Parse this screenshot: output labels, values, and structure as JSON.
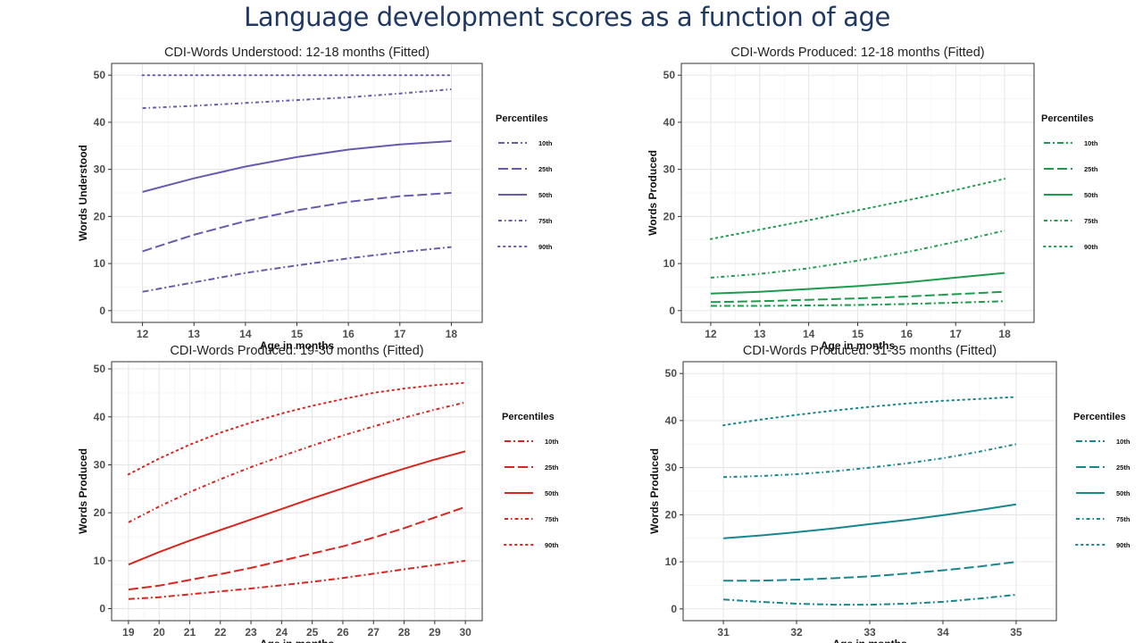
{
  "slide": {
    "title": "Language development scores as a function of age"
  },
  "legend_title": "Percentiles",
  "chart_data": [
    {
      "type": "line",
      "title": "CDI-Words Understood: 12-18 months (Fitted)",
      "xlabel": "Age in months",
      "ylabel": "Words Understood",
      "color": "#6a5aad",
      "xlim": [
        11.4,
        18.6
      ],
      "ylim": [
        -2.5,
        52.5
      ],
      "xticks": [
        12,
        13,
        14,
        15,
        16,
        17,
        18
      ],
      "yticks": [
        0,
        10,
        20,
        30,
        40,
        50
      ],
      "grid": true,
      "legend_position": "right",
      "x": [
        12,
        13,
        14,
        15,
        16,
        17,
        18
      ],
      "series": [
        {
          "name": "10th",
          "dash": "dashdot",
          "values": [
            4,
            6,
            8,
            9.6,
            11.1,
            12.4,
            13.5
          ]
        },
        {
          "name": "25th",
          "dash": "longdash",
          "values": [
            12.6,
            16.1,
            19.0,
            21.3,
            23.1,
            24.3,
            25.0
          ]
        },
        {
          "name": "50th",
          "dash": "solid",
          "values": [
            25.2,
            28.1,
            30.6,
            32.6,
            34.2,
            35.3,
            36.0
          ]
        },
        {
          "name": "75th",
          "dash": "dashdot2",
          "values": [
            43.0,
            43.5,
            44.1,
            44.7,
            45.3,
            46.1,
            47.0
          ]
        },
        {
          "name": "90th",
          "dash": "dotted",
          "values": [
            50,
            50,
            50,
            50,
            50,
            50,
            50
          ]
        }
      ]
    },
    {
      "type": "line",
      "title": "CDI-Words Produced: 12-18 months (Fitted)",
      "xlabel": "Age in months",
      "ylabel": "Words Produced",
      "color": "#1e9c4d",
      "xlim": [
        11.4,
        18.6
      ],
      "ylim": [
        -2.5,
        52.5
      ],
      "xticks": [
        12,
        13,
        14,
        15,
        16,
        17,
        18
      ],
      "yticks": [
        0,
        10,
        20,
        30,
        40,
        50
      ],
      "grid": true,
      "legend_position": "right",
      "x": [
        12,
        13,
        14,
        15,
        16,
        17,
        18
      ],
      "series": [
        {
          "name": "10th",
          "dash": "dashdot",
          "values": [
            1.0,
            1.0,
            1.1,
            1.2,
            1.4,
            1.7,
            2.0
          ]
        },
        {
          "name": "25th",
          "dash": "longdash",
          "values": [
            1.8,
            2.0,
            2.3,
            2.6,
            3.0,
            3.5,
            4.0
          ]
        },
        {
          "name": "50th",
          "dash": "solid",
          "values": [
            3.6,
            4.0,
            4.6,
            5.2,
            6.0,
            7.0,
            8.0
          ]
        },
        {
          "name": "75th",
          "dash": "dashdot2",
          "values": [
            7.0,
            7.8,
            9.0,
            10.6,
            12.4,
            14.6,
            17.0
          ]
        },
        {
          "name": "90th",
          "dash": "dotted",
          "values": [
            15.2,
            17.2,
            19.2,
            21.3,
            23.4,
            25.6,
            28.0
          ]
        }
      ]
    },
    {
      "type": "line",
      "title": "CDI-Words Produced: 19-30 months (Fitted)",
      "xlabel": "Age in months",
      "ylabel": "Words Produced",
      "color": "#d8261f",
      "xlim": [
        18.45,
        30.55
      ],
      "ylim": [
        -2.5,
        51.5
      ],
      "xticks": [
        19,
        20,
        21,
        22,
        23,
        24,
        25,
        26,
        27,
        28,
        29,
        30
      ],
      "yticks": [
        0,
        10,
        20,
        30,
        40,
        50
      ],
      "grid": true,
      "legend_position": "right",
      "x": [
        19,
        20,
        21,
        22,
        23,
        24,
        25,
        26,
        27,
        28,
        29,
        30
      ],
      "series": [
        {
          "name": "10th",
          "dash": "dashdot",
          "values": [
            2.0,
            2.4,
            3.0,
            3.6,
            4.2,
            4.9,
            5.6,
            6.4,
            7.3,
            8.2,
            9.1,
            10.0
          ]
        },
        {
          "name": "25th",
          "dash": "longdash",
          "values": [
            4.0,
            4.8,
            6.0,
            7.2,
            8.5,
            10.0,
            11.5,
            13.0,
            14.8,
            16.8,
            19.0,
            21.2
          ]
        },
        {
          "name": "50th",
          "dash": "solid",
          "values": [
            9.2,
            11.8,
            14.2,
            16.4,
            18.6,
            20.8,
            23.0,
            25.1,
            27.2,
            29.2,
            31.1,
            32.8
          ]
        },
        {
          "name": "75th",
          "dash": "dashdot2",
          "values": [
            18.0,
            21.3,
            24.3,
            27.0,
            29.5,
            31.8,
            34.0,
            36.1,
            38.0,
            39.8,
            41.5,
            43.0
          ]
        },
        {
          "name": "90th",
          "dash": "dotted",
          "values": [
            28.0,
            31.3,
            34.2,
            36.7,
            38.8,
            40.7,
            42.3,
            43.7,
            45.0,
            45.9,
            46.6,
            47.1
          ]
        }
      ]
    },
    {
      "type": "line",
      "title": "CDI-Words Produced: 31-35 months (Fitted)",
      "xlabel": "Age in months",
      "ylabel": "Words Produced",
      "color": "#17868e",
      "xlim": [
        30.45,
        35.55
      ],
      "ylim": [
        -2.5,
        52.5
      ],
      "xticks": [
        31,
        32,
        33,
        34,
        35
      ],
      "yticks": [
        0,
        10,
        20,
        30,
        40,
        50
      ],
      "grid": true,
      "legend_position": "right",
      "x": [
        31,
        31.5,
        32,
        32.5,
        33,
        33.5,
        34,
        34.5,
        35
      ],
      "series": [
        {
          "name": "10th",
          "dash": "dashdot",
          "values": [
            2.0,
            1.5,
            1.1,
            0.9,
            0.9,
            1.1,
            1.5,
            2.2,
            3.0
          ]
        },
        {
          "name": "25th",
          "dash": "longdash",
          "values": [
            6.0,
            6.0,
            6.2,
            6.5,
            6.9,
            7.5,
            8.2,
            9.0,
            10.0
          ]
        },
        {
          "name": "50th",
          "dash": "solid",
          "values": [
            15.0,
            15.6,
            16.3,
            17.1,
            18.0,
            18.9,
            19.9,
            21.0,
            22.2
          ]
        },
        {
          "name": "75th",
          "dash": "dashdot2",
          "values": [
            28.0,
            28.2,
            28.6,
            29.2,
            30.0,
            30.9,
            32.0,
            33.4,
            35.0
          ]
        },
        {
          "name": "90th",
          "dash": "dotted",
          "values": [
            39.0,
            40.2,
            41.2,
            42.1,
            42.9,
            43.6,
            44.2,
            44.6,
            45.0
          ]
        }
      ]
    }
  ]
}
